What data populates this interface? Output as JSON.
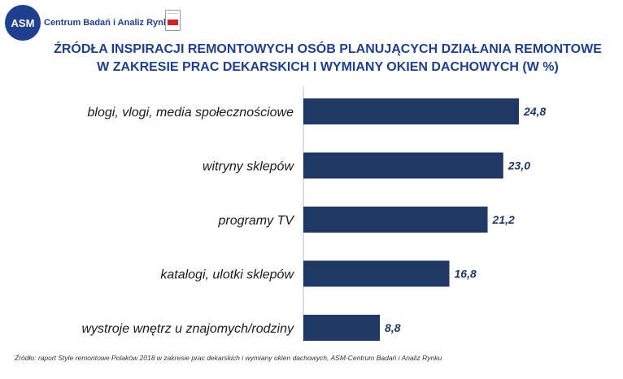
{
  "header": {
    "logo_abbr": "ASM",
    "logo_name": "Centrum Badań i Analiz Rynku"
  },
  "chart_data": {
    "type": "bar",
    "orientation": "horizontal",
    "title": "ŹRÓDŁA INSPIRACJI REMONTOWYCH OSÓB PLANUJĄCYCH DZIAŁANIA REMONTOWE W ZAKRESIE PRAC DEKARSKICH I WYMIANY OKIEN DACHOWYCH  (W %)",
    "title_lines": [
      "ŹRÓDŁA INSPIRACJI REMONTOWYCH OSÓB PLANUJĄCYCH DZIAŁANIA REMONTOWE",
      "W ZAKRESIE PRAC DEKARSKICH I WYMIANY OKIEN DACHOWYCH  (W %)"
    ],
    "categories": [
      "blogi, vlogi, media społecznościowe",
      "witryny sklepów",
      "programy TV",
      "katalogi, ulotki sklepów",
      "wystroje wnętrz u znajomych/rodziny"
    ],
    "values": [
      24.8,
      23.0,
      21.2,
      16.8,
      8.8
    ],
    "value_labels": [
      "24,8",
      "23,0",
      "21,2",
      "16,8",
      "8,8"
    ],
    "bar_color": "#1f3864",
    "xlim": [
      0,
      30
    ],
    "grid": false,
    "legend": "none"
  },
  "footer": {
    "source": "Źródło: raport Style remontowe Polaków 2018 w zakresie prac dekarskich i wymiany okien dachowych,  ASM-Centrum Badań i Analiz Rynku"
  }
}
